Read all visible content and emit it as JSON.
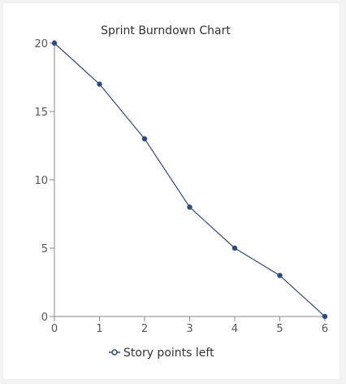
{
  "chart_data": {
    "type": "line",
    "title": "Sprint Burndown Chart",
    "xlabel": "",
    "ylabel": "",
    "x": [
      0,
      1,
      2,
      3,
      4,
      5,
      6
    ],
    "xlim": [
      0,
      6
    ],
    "ylim": [
      0,
      20
    ],
    "x_ticks": [
      "0",
      "1",
      "2",
      "3",
      "4",
      "5",
      "6"
    ],
    "y_ticks": [
      "0",
      "5",
      "10",
      "15",
      "20"
    ],
    "series": [
      {
        "name": "Story points left",
        "values": [
          20,
          17,
          13,
          8,
          5,
          3,
          0
        ],
        "color": "#2f4b7c"
      }
    ],
    "grid": false,
    "legend_position": "bottom"
  }
}
